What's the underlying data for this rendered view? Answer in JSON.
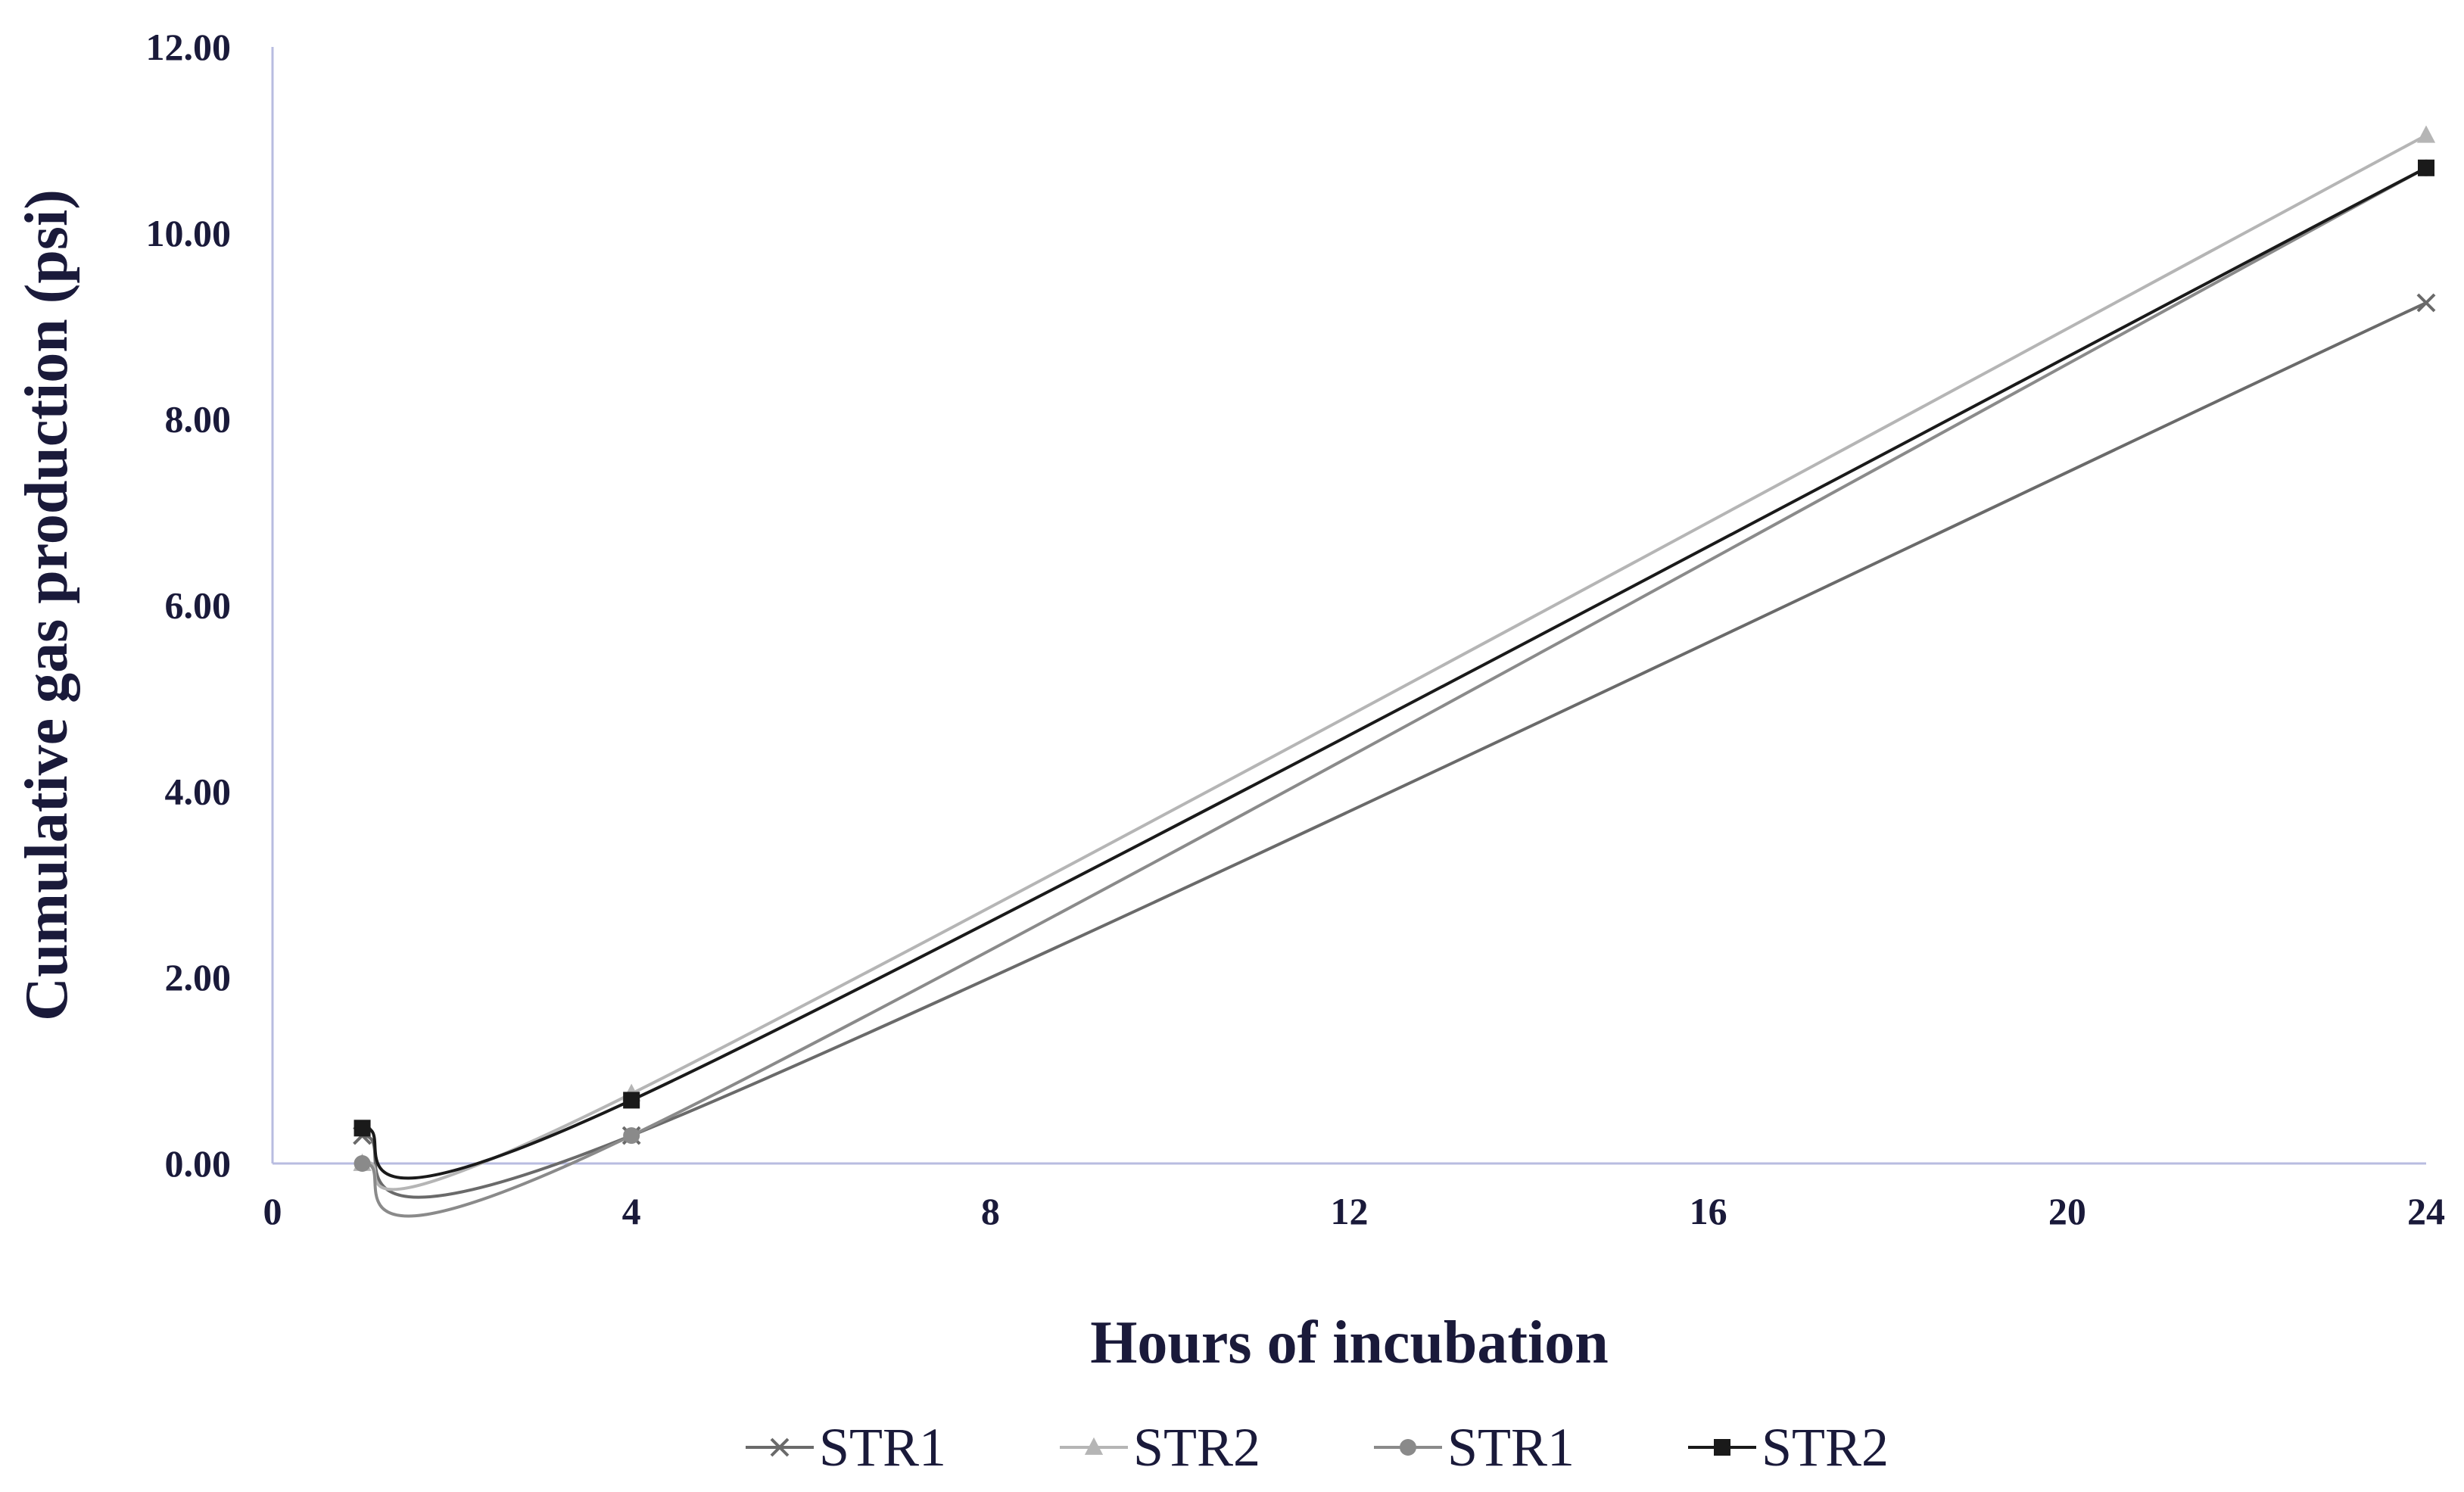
{
  "chart_data": {
    "type": "line",
    "title": "",
    "xlabel": "Hours of incubation",
    "ylabel": "Cumulative gas production (psi)",
    "xlim": [
      0,
      24
    ],
    "ylim": [
      0,
      12
    ],
    "x_ticks": [
      "0",
      "4",
      "8",
      "12",
      "16",
      "20",
      "24"
    ],
    "y_ticks": [
      "0.00",
      "2.00",
      "4.00",
      "6.00",
      "8.00",
      "10.00",
      "12.00"
    ],
    "grid": false,
    "legend_position": "bottom",
    "series": [
      {
        "name": "STR1",
        "marker": "x",
        "color": "#6a6a6a",
        "x": [
          1,
          4,
          24
        ],
        "values": [
          0.3,
          0.3,
          9.25
        ]
      },
      {
        "name": "STR2",
        "marker": "triangle",
        "color": "#b5b5b5",
        "x": [
          1,
          4,
          24
        ],
        "values": [
          0.0,
          0.75,
          11.05
        ]
      },
      {
        "name": "STR1",
        "marker": "circle",
        "color": "#8a8a8a",
        "x": [
          1,
          4,
          24
        ],
        "values": [
          0.0,
          0.3,
          10.7
        ]
      },
      {
        "name": "STR2",
        "marker": "square",
        "color": "#1a1a1a",
        "x": [
          1,
          4,
          24
        ],
        "values": [
          0.38,
          0.68,
          10.7
        ]
      }
    ]
  }
}
